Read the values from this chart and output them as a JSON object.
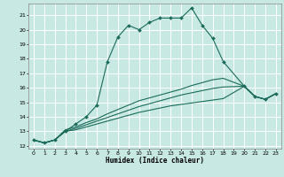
{
  "title": "",
  "xlabel": "Humidex (Indice chaleur)",
  "ylabel": "",
  "bg_color": "#c8e8e4",
  "grid_color": "#ffffff",
  "line_color": "#1a6b5a",
  "xlim": [
    -0.5,
    23.5
  ],
  "ylim": [
    11.8,
    21.8
  ],
  "xticks": [
    0,
    1,
    2,
    3,
    4,
    5,
    6,
    7,
    8,
    9,
    10,
    11,
    12,
    13,
    14,
    15,
    16,
    17,
    18,
    19,
    20,
    21,
    22,
    23
  ],
  "yticks": [
    12,
    13,
    14,
    15,
    16,
    17,
    18,
    19,
    20,
    21
  ],
  "line1_x": [
    0,
    1,
    2,
    3,
    4,
    5,
    6,
    7,
    8,
    9,
    10,
    11,
    12,
    13,
    14,
    15,
    16,
    17,
    18,
    20,
    21,
    22,
    23
  ],
  "line1_y": [
    12.4,
    12.2,
    12.4,
    13.0,
    13.5,
    14.0,
    14.8,
    17.8,
    19.5,
    20.3,
    20.0,
    20.5,
    20.8,
    20.8,
    20.8,
    21.5,
    20.3,
    19.4,
    17.8,
    16.1,
    15.4,
    15.2,
    15.6
  ],
  "line2_x": [
    0,
    1,
    2,
    3,
    4,
    5,
    6,
    7,
    8,
    9,
    10,
    11,
    12,
    13,
    14,
    15,
    16,
    17,
    18,
    20,
    21,
    22,
    23
  ],
  "line2_y": [
    12.4,
    12.2,
    12.4,
    13.1,
    13.3,
    13.6,
    13.85,
    14.2,
    14.5,
    14.8,
    15.1,
    15.3,
    15.5,
    15.7,
    15.9,
    16.15,
    16.35,
    16.55,
    16.65,
    16.1,
    15.4,
    15.2,
    15.6
  ],
  "line3_x": [
    0,
    1,
    2,
    3,
    4,
    5,
    6,
    7,
    8,
    9,
    10,
    11,
    12,
    13,
    14,
    15,
    16,
    17,
    18,
    20,
    21,
    22,
    23
  ],
  "line3_y": [
    12.4,
    12.2,
    12.4,
    13.0,
    13.2,
    13.45,
    13.7,
    13.95,
    14.2,
    14.45,
    14.7,
    14.9,
    15.1,
    15.3,
    15.5,
    15.65,
    15.8,
    15.95,
    16.05,
    16.1,
    15.4,
    15.2,
    15.6
  ],
  "line4_x": [
    0,
    1,
    2,
    3,
    4,
    5,
    6,
    7,
    8,
    9,
    10,
    11,
    12,
    13,
    14,
    15,
    16,
    17,
    18,
    20,
    21,
    22,
    23
  ],
  "line4_y": [
    12.4,
    12.2,
    12.4,
    13.0,
    13.1,
    13.3,
    13.5,
    13.7,
    13.9,
    14.1,
    14.3,
    14.45,
    14.6,
    14.75,
    14.85,
    14.95,
    15.05,
    15.15,
    15.25,
    16.1,
    15.4,
    15.2,
    15.6
  ]
}
